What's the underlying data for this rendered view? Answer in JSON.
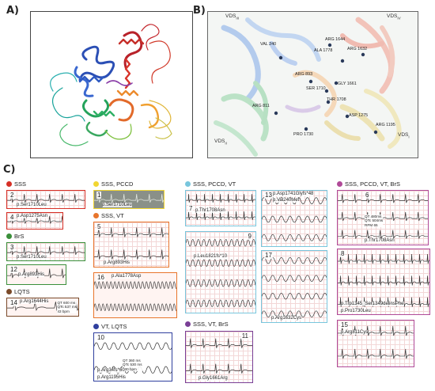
{
  "panels": {
    "a": "A)",
    "b": "B)",
    "c": "C)"
  },
  "structure_b": {
    "domains": [
      "VDS",
      "VDS",
      "VDS",
      "VDS"
    ],
    "domain_subs": [
      "III",
      "IV",
      "II",
      "I"
    ],
    "residues": [
      "VAL 240",
      "ALA 1778",
      "ARG 1644",
      "ARG 1632",
      "ARG 893",
      "SER 1710",
      "GLY 1661",
      "THR 1708",
      "ARG 811",
      "ASP 1275",
      "ARG 1195",
      "PRO 1730"
    ]
  },
  "groups": [
    {
      "label": "SSS",
      "color": "#d62f26"
    },
    {
      "label": "BrS",
      "color": "#3a8f3a"
    },
    {
      "label": "LQTS",
      "color": "#7a4a2a"
    },
    {
      "label": "SSS, PCCD",
      "color": "#f1d632"
    },
    {
      "label": "SSS, VT",
      "color": "#e8752c"
    },
    {
      "label": "VT, LQTS",
      "color": "#2f3f9e"
    },
    {
      "label": "SSS, PCCD, VT",
      "color": "#78c6dd"
    },
    {
      "label": "SSS, VT, BrS",
      "color": "#7a3f96"
    },
    {
      "label": "SSS, PCCD, VT, BrS",
      "color": "#b04a98"
    }
  ],
  "cases": [
    {
      "num": "2",
      "mutation": "p.Ser1710Leu"
    },
    {
      "num": "4",
      "mutation": "p.Asp1275Asn"
    },
    {
      "num": "3",
      "mutation": "p.Ser1710Leu"
    },
    {
      "num": "12",
      "mutation": "p.Arg893His"
    },
    {
      "num": "14",
      "mutation": "p.Arg1644His",
      "note": "QT 600 ms\nQTc 537 ms\n43 bpm"
    },
    {
      "num": "1",
      "mutation": "p.Ser1710Leu"
    },
    {
      "num": "5",
      "mutation": "p.Arg893His"
    },
    {
      "num": "16",
      "mutation": "p.Ala1778Asp"
    },
    {
      "num": "10",
      "mutation": "p.Arg34fs*60",
      "mutation2": "p.Arg1195His",
      "note": "QT 360 ms\nQTc 530 ms\n130 bpm"
    },
    {
      "num": "7",
      "mutation": "p.Thr1708Asn"
    },
    {
      "num": "9",
      "mutation": "p.Leu1821fs*10"
    },
    {
      "num": "13",
      "mutation": "p.Asp1741Glyfs*48",
      "mutation2": "p.Val240Met"
    },
    {
      "num": "17",
      "mutation": "p.Arg1632Cys"
    },
    {
      "num": "11",
      "mutation": "p.Gly1661Arg"
    },
    {
      "num": "6",
      "mutation": "p.Thr1708Asn",
      "note": "QT 480ms\nQTc 504ms\nRPM 65"
    },
    {
      "num": "8",
      "mutation": "p.Trp1345_Ser1349delinsPhe",
      "mutation2": "p.Pro1730Leu"
    },
    {
      "num": "15",
      "mutation": "p.Arg811Cys"
    }
  ]
}
